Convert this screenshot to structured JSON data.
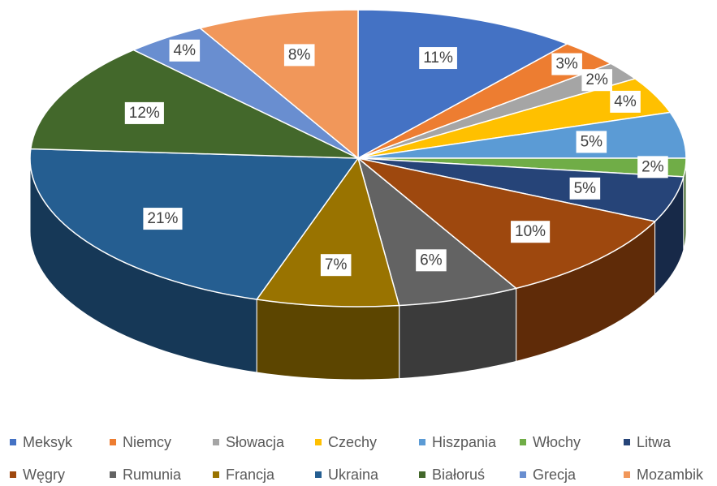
{
  "chart_data": {
    "type": "pie",
    "categories": [
      "Meksyk",
      "Niemcy",
      "Słowacja",
      "Czechy",
      "Hiszpania",
      "Włochy",
      "Litwa",
      "Węgry",
      "Rumunia",
      "Francja",
      "Ukraina",
      "Białoruś",
      "Grecja",
      "Mozambik"
    ],
    "values": [
      11,
      3,
      2,
      4,
      5,
      2,
      5,
      10,
      6,
      7,
      21,
      12,
      4,
      8
    ],
    "value_labels": [
      "11%",
      "3%",
      "2%",
      "4%",
      "5%",
      "2%",
      "5%",
      "10%",
      "6%",
      "7%",
      "21%",
      "12%",
      "4%",
      "8%"
    ],
    "colors": [
      "#4472c4",
      "#ed7d31",
      "#a5a5a5",
      "#ffc000",
      "#5b9bd5",
      "#70ad47",
      "#264478",
      "#9e480e",
      "#636363",
      "#997300",
      "#255e91",
      "#43682b",
      "#698ed0",
      "#f1975a"
    ],
    "legend": "bottom"
  }
}
